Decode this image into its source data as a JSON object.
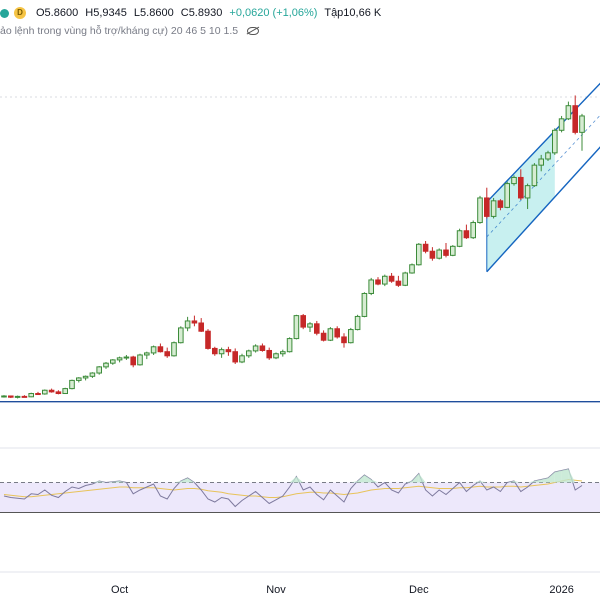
{
  "legend": {
    "marker_left": "●",
    "marker_badge": "D",
    "open": "O5.8600",
    "high": "H5,9345",
    "low": "L5.8600",
    "close": "C5.8930",
    "change": "+0,0620 (+1,06%)",
    "volume": "Tập10,66 K",
    "indicator": "ảo lệnh trong vùng hỗ trợ/kháng cự) 20 46 5 10 1.5"
  },
  "colors": {
    "up": "#3c8b3a",
    "up_fill": "#d6ecd2",
    "down": "#c62828",
    "channel": "#1565c0",
    "channel_fill": "#c8f0f0",
    "support": "#1f4e9c",
    "rsi": "#7e7a9e",
    "rsi_ma": "#e8c35a",
    "rsi_band": "#ede8fb"
  },
  "icons": {
    "visibility": "eye-off-icon"
  },
  "chart_data": {
    "type": "candlestick",
    "price_axis": {
      "ylim": [
        0,
        6
      ]
    },
    "x_ticks": [
      {
        "label": "Oct",
        "index": 17
      },
      {
        "label": "Nov",
        "index": 40
      },
      {
        "label": "Dec",
        "index": 61
      },
      {
        "label": "2026",
        "index": 82
      }
    ],
    "candles": [
      [
        0.2,
        0.24,
        0.18,
        0.22
      ],
      [
        0.22,
        0.23,
        0.17,
        0.19
      ],
      [
        0.19,
        0.23,
        0.16,
        0.21
      ],
      [
        0.21,
        0.24,
        0.19,
        0.2
      ],
      [
        0.2,
        0.3,
        0.19,
        0.28
      ],
      [
        0.28,
        0.32,
        0.25,
        0.27
      ],
      [
        0.27,
        0.38,
        0.25,
        0.36
      ],
      [
        0.36,
        0.4,
        0.3,
        0.32
      ],
      [
        0.32,
        0.36,
        0.26,
        0.28
      ],
      [
        0.28,
        0.42,
        0.27,
        0.4
      ],
      [
        0.4,
        0.62,
        0.38,
        0.6
      ],
      [
        0.6,
        0.68,
        0.55,
        0.66
      ],
      [
        0.66,
        0.72,
        0.6,
        0.7
      ],
      [
        0.7,
        0.8,
        0.66,
        0.78
      ],
      [
        0.78,
        0.95,
        0.74,
        0.93
      ],
      [
        0.93,
        1.05,
        0.88,
        1.02
      ],
      [
        1.02,
        1.12,
        0.98,
        1.1
      ],
      [
        1.1,
        1.18,
        1.04,
        1.15
      ],
      [
        1.15,
        1.22,
        1.1,
        1.17
      ],
      [
        1.17,
        1.2,
        0.92,
        0.98
      ],
      [
        0.98,
        1.25,
        0.96,
        1.22
      ],
      [
        1.22,
        1.3,
        1.12,
        1.27
      ],
      [
        1.27,
        1.45,
        1.22,
        1.42
      ],
      [
        1.42,
        1.5,
        1.28,
        1.3
      ],
      [
        1.3,
        1.4,
        1.15,
        1.2
      ],
      [
        1.2,
        1.55,
        1.18,
        1.52
      ],
      [
        1.52,
        1.92,
        1.5,
        1.88
      ],
      [
        1.88,
        2.15,
        1.8,
        2.05
      ],
      [
        2.05,
        2.18,
        1.92,
        2.0
      ],
      [
        2.0,
        2.12,
        1.78,
        1.8
      ],
      [
        1.8,
        1.85,
        1.35,
        1.38
      ],
      [
        1.38,
        1.42,
        1.2,
        1.25
      ],
      [
        1.25,
        1.4,
        1.15,
        1.35
      ],
      [
        1.35,
        1.42,
        1.2,
        1.3
      ],
      [
        1.3,
        1.38,
        1.0,
        1.05
      ],
      [
        1.05,
        1.25,
        1.02,
        1.2
      ],
      [
        1.2,
        1.35,
        1.15,
        1.32
      ],
      [
        1.32,
        1.48,
        1.28,
        1.44
      ],
      [
        1.44,
        1.5,
        1.3,
        1.33
      ],
      [
        1.33,
        1.4,
        1.1,
        1.15
      ],
      [
        1.15,
        1.28,
        1.12,
        1.25
      ],
      [
        1.25,
        1.35,
        1.18,
        1.3
      ],
      [
        1.3,
        1.65,
        1.28,
        1.62
      ],
      [
        1.62,
        2.2,
        1.6,
        2.18
      ],
      [
        2.18,
        2.22,
        1.85,
        1.9
      ],
      [
        1.9,
        2.02,
        1.78,
        1.98
      ],
      [
        1.98,
        2.05,
        1.7,
        1.75
      ],
      [
        1.75,
        1.82,
        1.55,
        1.58
      ],
      [
        1.58,
        1.9,
        1.56,
        1.86
      ],
      [
        1.86,
        1.92,
        1.62,
        1.66
      ],
      [
        1.66,
        1.75,
        1.4,
        1.52
      ],
      [
        1.52,
        1.88,
        1.5,
        1.84
      ],
      [
        1.84,
        2.2,
        1.82,
        2.16
      ],
      [
        2.16,
        2.75,
        2.14,
        2.72
      ],
      [
        2.72,
        3.1,
        2.68,
        3.05
      ],
      [
        3.05,
        3.12,
        2.92,
        2.95
      ],
      [
        2.95,
        3.18,
        2.9,
        3.14
      ],
      [
        3.14,
        3.22,
        2.98,
        3.02
      ],
      [
        3.02,
        3.15,
        2.88,
        2.92
      ],
      [
        2.92,
        3.25,
        2.9,
        3.22
      ],
      [
        3.22,
        3.45,
        3.2,
        3.42
      ],
      [
        3.42,
        3.95,
        3.4,
        3.92
      ],
      [
        3.92,
        4.0,
        3.7,
        3.75
      ],
      [
        3.75,
        3.85,
        3.52,
        3.58
      ],
      [
        3.58,
        3.82,
        3.55,
        3.78
      ],
      [
        3.78,
        3.95,
        3.6,
        3.65
      ],
      [
        3.65,
        3.9,
        3.63,
        3.87
      ],
      [
        3.87,
        4.3,
        3.85,
        4.25
      ],
      [
        4.25,
        4.4,
        4.05,
        4.08
      ],
      [
        4.08,
        4.5,
        4.05,
        4.45
      ],
      [
        4.45,
        5.1,
        4.42,
        5.05
      ],
      [
        5.05,
        5.3,
        4.55,
        4.6
      ],
      [
        4.6,
        5.05,
        4.55,
        4.98
      ],
      [
        4.98,
        5.02,
        4.75,
        4.82
      ],
      [
        4.82,
        5.45,
        4.8,
        5.4
      ],
      [
        5.4,
        5.6,
        5.35,
        5.55
      ],
      [
        5.55,
        5.75,
        5.0,
        5.05
      ],
      [
        5.05,
        5.4,
        4.78,
        5.35
      ],
      [
        5.35,
        5.9,
        5.32,
        5.85
      ],
      [
        5.85,
        6.1,
        5.7,
        6.0
      ],
      [
        6.0,
        6.2,
        5.95,
        6.15
      ],
      [
        6.15,
        6.75,
        6.1,
        6.7
      ],
      [
        6.7,
        7.05,
        6.65,
        6.98
      ],
      [
        6.98,
        7.4,
        6.95,
        7.3
      ],
      [
        7.3,
        7.55,
        6.6,
        6.65
      ],
      [
        6.65,
        7.1,
        6.2,
        7.05
      ]
    ],
    "channel": {
      "start_index": 71,
      "end_index": 88,
      "upper": [
        4.95,
        7.9
      ],
      "lower": [
        3.25,
        6.35
      ],
      "fill_until_index": 81
    },
    "support_level": 0.08,
    "rsi": {
      "ylim": [
        0,
        100
      ],
      "upper_band": 70,
      "lower_band": 30,
      "values": [
        52,
        50,
        49,
        48,
        55,
        54,
        60,
        53,
        50,
        58,
        64,
        62,
        66,
        68,
        72,
        70,
        71,
        72,
        70,
        55,
        60,
        64,
        68,
        52,
        48,
        62,
        72,
        76,
        70,
        60,
        48,
        44,
        50,
        48,
        38,
        46,
        52,
        58,
        50,
        42,
        47,
        52,
        64,
        78,
        60,
        64,
        54,
        47,
        60,
        52,
        44,
        62,
        72,
        80,
        74,
        64,
        70,
        60,
        56,
        68,
        72,
        82,
        60,
        52,
        60,
        54,
        62,
        70,
        58,
        66,
        72,
        60,
        64,
        58,
        70,
        72,
        58,
        64,
        72,
        74,
        76,
        84,
        86,
        88,
        60,
        66
      ],
      "ma": [
        54,
        53,
        52,
        51,
        51,
        52,
        53,
        54,
        55,
        56,
        57,
        58,
        59,
        60,
        61,
        62,
        63,
        64,
        64,
        63,
        63,
        63,
        63,
        62,
        61,
        60,
        61,
        62,
        62,
        61,
        59,
        58,
        57,
        55,
        54,
        53,
        52,
        52,
        51,
        50,
        50,
        51,
        53,
        55,
        56,
        57,
        57,
        56,
        56,
        55,
        54,
        55,
        56,
        58,
        60,
        61,
        62,
        62,
        62,
        63,
        64,
        65,
        64,
        63,
        62,
        62,
        62,
        63,
        63,
        64,
        65,
        64,
        64,
        64,
        65,
        65,
        64,
        65,
        66,
        67,
        68,
        70,
        72,
        74,
        73,
        72
      ]
    }
  }
}
